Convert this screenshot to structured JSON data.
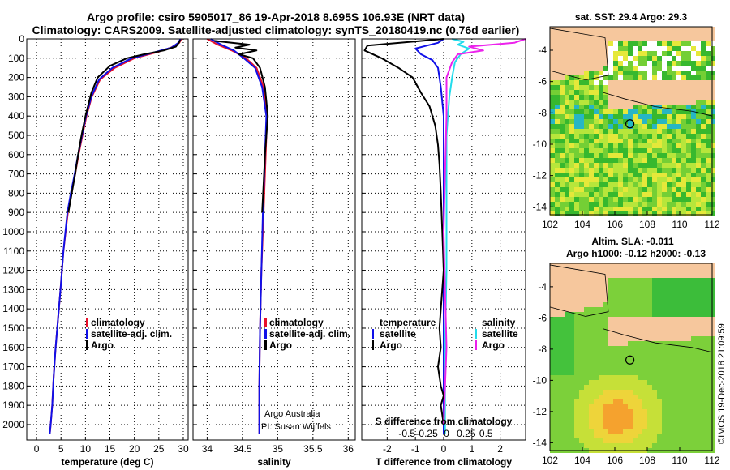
{
  "title": {
    "line1": "Argo profile: csiro 5905017_86 19-Apr-2018 8.695S 106.93E (NRT data)",
    "line2": "Climatology: CARS2009. Satellite-adjusted climatology: synTS_20180419.nc (0.76d earlier)"
  },
  "colors": {
    "climatology": "#e8102a",
    "satellite": "#1010e8",
    "argo": "#000000",
    "sal_satellite": "#22dcec",
    "sal_argo": "#ec22ec"
  },
  "chart_data": [
    {
      "type": "line",
      "id": "temperature",
      "xlabel": "temperature (deg C)",
      "ylabel": "",
      "xlim": [
        -2,
        31
      ],
      "ylim": [
        2080,
        0
      ],
      "xticks": [
        0,
        5,
        10,
        15,
        20,
        25,
        30
      ],
      "yticks": [
        0,
        100,
        200,
        300,
        400,
        500,
        600,
        700,
        800,
        900,
        1000,
        1100,
        1200,
        1300,
        1400,
        1500,
        1600,
        1700,
        1800,
        1900,
        2000
      ],
      "grid": true,
      "legend": [
        "climatology",
        "satellite-adj. clim.",
        "Argo"
      ],
      "legend_position": "bottom-center",
      "series": [
        {
          "name": "climatology",
          "color_key": "climatology",
          "x": [
            29.6,
            29.2,
            27.5,
            24.5,
            20,
            16,
            13,
            11.3,
            10.2,
            9.4,
            8.6,
            7.9,
            7.1,
            6.4,
            5.5,
            4.9,
            4.4,
            3.9,
            3.5,
            3.2,
            2.9,
            2.7
          ],
          "y": [
            0,
            20,
            45,
            70,
            100,
            150,
            210,
            300,
            400,
            500,
            600,
            700,
            800,
            900,
            1100,
            1300,
            1450,
            1600,
            1750,
            1900,
            2000,
            2050
          ]
        },
        {
          "name": "satellite-adj. clim.",
          "color_key": "satellite",
          "x": [
            29.4,
            29.0,
            27.6,
            24,
            19.5,
            15.5,
            12.8,
            11.2,
            10.1,
            9.3,
            8.5,
            7.8,
            7.0,
            6.3,
            5.5,
            4.9,
            4.4,
            3.9,
            3.5,
            3.2,
            2.9,
            2.7
          ],
          "y": [
            0,
            20,
            45,
            70,
            100,
            150,
            210,
            300,
            400,
            500,
            600,
            700,
            800,
            900,
            1100,
            1300,
            1450,
            1600,
            1750,
            1900,
            2000,
            2050
          ]
        },
        {
          "name": "Argo",
          "color_key": "argo",
          "x": [
            29.4,
            29.1,
            28.5,
            26,
            22,
            18.5,
            15,
            12.5,
            11.2,
            10.0,
            9.2,
            8.5,
            7.9,
            7.2,
            6.5
          ],
          "y": [
            5,
            20,
            40,
            60,
            80,
            100,
            140,
            200,
            280,
            400,
            500,
            600,
            700,
            800,
            900
          ]
        }
      ]
    },
    {
      "type": "line",
      "id": "salinity",
      "xlabel": "salinity",
      "ylabel": "",
      "xlim": [
        33.8,
        36.1
      ],
      "ylim": [
        2080,
        0
      ],
      "xticks": [
        34,
        34.5,
        35,
        35.5,
        36
      ],
      "grid": true,
      "legend": [
        "climatology",
        "satellite-adj. clim.",
        "Argo"
      ],
      "legend_position": "bottom-right",
      "series": [
        {
          "name": "climatology",
          "color_key": "climatology",
          "x": [
            34.0,
            34.15,
            34.35,
            34.55,
            34.7,
            34.8,
            34.85,
            34.83,
            34.8,
            34.77,
            34.75,
            34.74,
            34.74
          ],
          "y": [
            0,
            30,
            60,
            100,
            150,
            250,
            400,
            600,
            900,
            1200,
            1500,
            1800,
            2050
          ]
        },
        {
          "name": "satellite-adj. clim.",
          "color_key": "satellite",
          "x": [
            34.05,
            34.2,
            34.38,
            34.52,
            34.68,
            34.78,
            34.84,
            34.82,
            34.79,
            34.77,
            34.75,
            34.74,
            34.74
          ],
          "y": [
            0,
            30,
            60,
            100,
            150,
            250,
            400,
            600,
            900,
            1200,
            1500,
            1800,
            2050
          ]
        },
        {
          "name": "Argo",
          "color_key": "argo",
          "x": [
            34.1,
            34.6,
            34.4,
            34.7,
            34.45,
            34.65,
            34.75,
            34.82,
            34.86,
            34.82,
            34.8,
            34.78
          ],
          "y": [
            10,
            30,
            45,
            60,
            80,
            100,
            150,
            250,
            400,
            600,
            750,
            900
          ]
        }
      ],
      "annotations": [
        "Argo Australia",
        "PI: Susan Wijffels"
      ]
    },
    {
      "type": "line",
      "id": "difference",
      "xlabel": "T difference from climatology",
      "ylabel": "",
      "xlim": [
        -2.9,
        2.9
      ],
      "ylim": [
        2080,
        0
      ],
      "xticks": [
        -2,
        -1,
        0,
        1,
        2
      ],
      "secondary_xlabel": "S difference from climatology",
      "secondary_xticks": [
        "-0.5",
        "-0.25",
        "0",
        "0.25",
        "0.5"
      ],
      "grid": true,
      "legend": {
        "temperature": [
          "satellite",
          "Argo"
        ],
        "salinity": [
          "satellite",
          "Argo"
        ]
      },
      "legend_position": "bottom",
      "series": [
        {
          "name": "temperature satellite",
          "color_key": "satellite",
          "x": [
            0,
            -0.2,
            -0.6,
            -1.0,
            -0.8,
            -0.4,
            -0.2,
            -0.1,
            0,
            0,
            0,
            0,
            0,
            0,
            0
          ],
          "y": [
            0,
            20,
            35,
            50,
            80,
            110,
            150,
            250,
            400,
            600,
            900,
            1200,
            1500,
            1800,
            2050
          ]
        },
        {
          "name": "temperature Argo",
          "color_key": "argo",
          "x": [
            0,
            -2.7,
            -2.8,
            -2.2,
            -1.6,
            -1.1,
            -0.8,
            -0.5,
            -0.3,
            -0.2,
            -0.15,
            -0.1,
            -0.05,
            0,
            -0.1,
            -0.15,
            -0.1,
            -0.2,
            -0.1,
            0,
            -0.1,
            -0.05,
            0
          ],
          "y": [
            0,
            35,
            60,
            100,
            150,
            200,
            280,
            350,
            450,
            550,
            650,
            800,
            1000,
            1200,
            1400,
            1500,
            1600,
            1700,
            1800,
            1850,
            1900,
            1950,
            2000
          ]
        },
        {
          "name": "salinity satellite",
          "color_key": "sal_satellite",
          "x": [
            0.3,
            0.7,
            0.5,
            0.9,
            0.6,
            0.4,
            0.3,
            0.2,
            0.15,
            0.1,
            0.1,
            0.1,
            0.05,
            0.05
          ],
          "y": [
            0,
            15,
            30,
            50,
            80,
            120,
            200,
            300,
            400,
            500,
            800,
            1200,
            1600,
            2050
          ]
        },
        {
          "name": "salinity Argo",
          "color_key": "sal_argo",
          "x": [
            2.9,
            2.5,
            0.9,
            1.4,
            0.5,
            0.3,
            0.1,
            0.1,
            0.05,
            0,
            0.05,
            0.1,
            0.05,
            0
          ],
          "y": [
            0,
            20,
            40,
            60,
            80,
            120,
            200,
            400,
            700,
            1000,
            1300,
            1600,
            1800,
            2000
          ]
        }
      ]
    },
    {
      "type": "heatmap",
      "id": "sst_map",
      "title": "sat. SST: 29.4 Argo: 29.3",
      "xlim": [
        102,
        112
      ],
      "ylim": [
        -14.5,
        -2.5
      ],
      "xticks": [
        102,
        104,
        106,
        108,
        110,
        112
      ],
      "yticks": [
        -4,
        -6,
        -8,
        -10,
        -12,
        -14
      ],
      "marker": {
        "lon": 106.93,
        "lat": -8.695
      }
    },
    {
      "type": "heatmap",
      "id": "sla_map",
      "title": "Altim. SLA: -0.011",
      "subtitle": "Argo h1000: -0.12 h2000: -0.13",
      "xlim": [
        102,
        112
      ],
      "ylim": [
        -14.5,
        -2.5
      ],
      "xticks": [
        102,
        104,
        106,
        108,
        110,
        112
      ],
      "yticks": [
        -4,
        -6,
        -8,
        -10,
        -12,
        -14
      ],
      "marker": {
        "lon": 106.93,
        "lat": -8.695
      }
    }
  ],
  "credit": "©IMOS 19-Dec-2018 21:09:59"
}
